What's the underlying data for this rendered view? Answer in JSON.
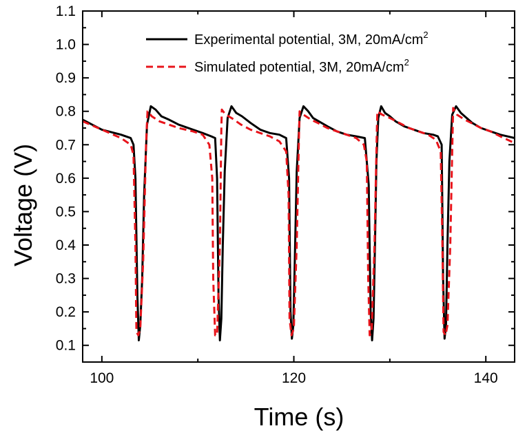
{
  "chart_data": {
    "type": "line",
    "title": "",
    "xlabel": "Time (s)",
    "ylabel": "Voltage (V)",
    "xlim": [
      98,
      143
    ],
    "ylim": [
      0.05,
      1.1
    ],
    "xticks": [
      100,
      120,
      140
    ],
    "xtick_labels": [
      "100",
      "120",
      "140"
    ],
    "yticks": [
      0.1,
      0.2,
      0.3,
      0.4,
      0.5,
      0.6,
      0.7,
      0.8,
      0.9,
      1.0,
      1.1
    ],
    "ytick_labels": [
      "0.1",
      "0.2",
      "0.3",
      "0.4",
      "0.5",
      "0.6",
      "0.7",
      "0.8",
      "0.9",
      "1.0",
      "1.1"
    ],
    "grid": false,
    "legend_position": "top-right",
    "series": [
      {
        "name": "Experimental potential, 3M, 20mA/cm",
        "name_superscript": "2",
        "color": "#000000",
        "style": "solid",
        "x": [
          98.0,
          100.0,
          102.0,
          103.0,
          103.3,
          103.5,
          103.7,
          103.85,
          104.0,
          104.2,
          104.4,
          104.7,
          105.1,
          105.6,
          106.2,
          107.0,
          108.0,
          109.5,
          110.5,
          111.4,
          111.8,
          112.0,
          112.15,
          112.3,
          112.45,
          112.6,
          112.8,
          113.1,
          113.5,
          114.0,
          114.6,
          115.5,
          116.5,
          117.5,
          118.5,
          119.2,
          119.5,
          119.65,
          119.8,
          119.95,
          120.1,
          120.3,
          120.6,
          121.0,
          121.5,
          122.0,
          122.6,
          123.5,
          124.5,
          125.5,
          126.5,
          127.4,
          127.8,
          128.0,
          128.15,
          128.3,
          128.45,
          128.6,
          128.8,
          129.1,
          129.5,
          130.0,
          130.6,
          131.5,
          132.5,
          133.5,
          134.5,
          135.0,
          135.4,
          135.55,
          135.7,
          135.85,
          136.0,
          136.2,
          136.5,
          136.9,
          137.4,
          138.0,
          138.6,
          139.5,
          140.5,
          141.5,
          143.0
        ],
        "y": [
          0.775,
          0.745,
          0.73,
          0.72,
          0.7,
          0.6,
          0.25,
          0.115,
          0.16,
          0.3,
          0.55,
          0.76,
          0.815,
          0.805,
          0.785,
          0.775,
          0.76,
          0.745,
          0.735,
          0.725,
          0.72,
          0.6,
          0.25,
          0.115,
          0.18,
          0.4,
          0.62,
          0.78,
          0.815,
          0.795,
          0.785,
          0.765,
          0.745,
          0.735,
          0.73,
          0.72,
          0.6,
          0.2,
          0.12,
          0.16,
          0.35,
          0.62,
          0.78,
          0.815,
          0.8,
          0.78,
          0.77,
          0.755,
          0.74,
          0.73,
          0.725,
          0.72,
          0.58,
          0.2,
          0.115,
          0.18,
          0.4,
          0.65,
          0.78,
          0.815,
          0.795,
          0.785,
          0.77,
          0.755,
          0.745,
          0.735,
          0.73,
          0.725,
          0.7,
          0.3,
          0.12,
          0.16,
          0.4,
          0.65,
          0.79,
          0.815,
          0.795,
          0.78,
          0.765,
          0.75,
          0.74,
          0.73,
          0.72
        ]
      },
      {
        "name": "Simulated potential, 3M, 20mA/cm",
        "name_superscript": "2",
        "color": "#e8141b",
        "style": "dashed",
        "x": [
          98.0,
          100.0,
          102.0,
          103.0,
          103.3,
          103.5,
          103.6,
          103.8,
          104.0,
          104.3,
          104.6,
          104.75,
          104.8,
          105.2,
          106.0,
          107.0,
          108.0,
          109.5,
          110.5,
          111.2,
          111.5,
          111.6,
          111.8,
          112.0,
          112.3,
          112.45,
          112.5,
          112.9,
          113.5,
          114.5,
          115.5,
          116.5,
          117.5,
          118.5,
          119.2,
          119.45,
          119.55,
          119.75,
          120.0,
          120.3,
          120.55,
          120.6,
          121.0,
          121.8,
          122.5,
          123.5,
          124.5,
          125.5,
          126.5,
          127.3,
          127.6,
          127.75,
          127.9,
          128.1,
          128.4,
          128.65,
          128.7,
          129.2,
          130.0,
          131.0,
          132.0,
          133.0,
          134.0,
          134.8,
          135.3,
          135.45,
          135.6,
          135.8,
          136.0,
          136.3,
          136.55,
          136.6,
          137.0,
          137.8,
          138.5,
          139.5,
          140.5,
          141.5,
          143.0
        ],
        "y": [
          0.77,
          0.745,
          0.72,
          0.7,
          0.67,
          0.4,
          0.14,
          0.13,
          0.15,
          0.35,
          0.7,
          0.8,
          0.8,
          0.785,
          0.77,
          0.76,
          0.75,
          0.74,
          0.73,
          0.7,
          0.6,
          0.3,
          0.13,
          0.13,
          0.4,
          0.75,
          0.805,
          0.79,
          0.78,
          0.76,
          0.745,
          0.735,
          0.725,
          0.71,
          0.68,
          0.55,
          0.18,
          0.13,
          0.15,
          0.4,
          0.75,
          0.8,
          0.79,
          0.775,
          0.765,
          0.75,
          0.74,
          0.73,
          0.72,
          0.7,
          0.65,
          0.3,
          0.13,
          0.14,
          0.4,
          0.75,
          0.8,
          0.79,
          0.78,
          0.765,
          0.75,
          0.74,
          0.73,
          0.715,
          0.68,
          0.45,
          0.14,
          0.13,
          0.16,
          0.4,
          0.75,
          0.81,
          0.79,
          0.775,
          0.765,
          0.75,
          0.74,
          0.725,
          0.705
        ]
      }
    ]
  }
}
